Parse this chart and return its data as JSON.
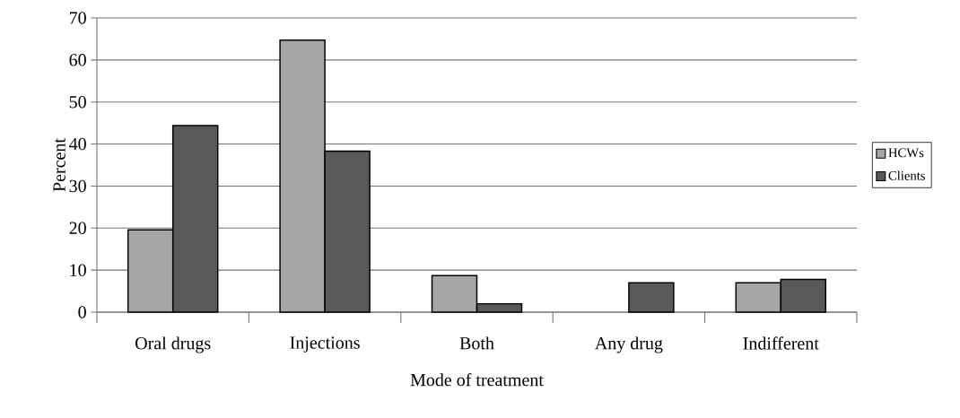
{
  "chart_data": {
    "type": "bar",
    "xlabel": "Mode of treatment",
    "ylabel": "Percent",
    "categories": [
      "Oral drugs",
      "Injections",
      "Both",
      "Any drug",
      "Indifferent"
    ],
    "series": [
      {
        "name": "HCWs",
        "color": "#a6a6a6",
        "values": [
          19.6,
          64.7,
          8.7,
          null,
          7.0
        ]
      },
      {
        "name": "Clients",
        "color": "#595959",
        "values": [
          44.4,
          38.3,
          2.0,
          7.0,
          7.8
        ]
      }
    ],
    "ylim": [
      0,
      70
    ],
    "yticks": [
      0,
      10,
      20,
      30,
      40,
      50,
      60,
      70
    ],
    "grid": "y",
    "legend": "right"
  }
}
